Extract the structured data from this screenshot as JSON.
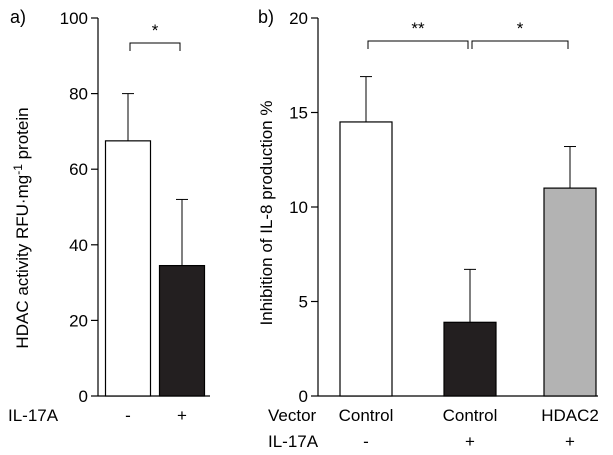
{
  "chart_data": [
    {
      "type": "bar",
      "panel_label": "a)",
      "ylabel_main": "HDAC activity RFU·mg",
      "ylabel_sup": "-1",
      "ylabel_tail": " protein",
      "ylim": [
        0,
        100
      ],
      "yticks": [
        "0",
        "20",
        "40",
        "60",
        "80",
        "100"
      ],
      "row_labels": [
        "IL-17A"
      ],
      "categories": [
        {
          "row_values": [
            "-"
          ],
          "value": 67.5,
          "error": 12.5,
          "color": "#ffffff"
        },
        {
          "row_values": [
            "+"
          ],
          "value": 34.5,
          "error": 17.5,
          "color": "#231f20"
        }
      ],
      "significance": [
        {
          "from": 0,
          "to": 1,
          "label": "*"
        }
      ]
    },
    {
      "type": "bar",
      "panel_label": "b)",
      "ylabel": "Inhibition of IL-8 production %",
      "ylim": [
        0,
        20
      ],
      "yticks": [
        "0",
        "5",
        "10",
        "15",
        "20"
      ],
      "row_labels": [
        "Vector",
        "IL-17A"
      ],
      "categories": [
        {
          "row_values": [
            "Control",
            "-"
          ],
          "value": 14.5,
          "error": 2.4,
          "color": "#ffffff"
        },
        {
          "row_values": [
            "Control",
            "+"
          ],
          "value": 3.9,
          "error": 2.8,
          "color": "#231f20"
        },
        {
          "row_values": [
            "HDAC2",
            "+"
          ],
          "value": 11.0,
          "error": 2.2,
          "color": "#b3b3b3"
        }
      ],
      "significance": [
        {
          "from": 0,
          "to": 1,
          "label": "**"
        },
        {
          "from": 1,
          "to": 2,
          "label": "*"
        }
      ]
    }
  ]
}
